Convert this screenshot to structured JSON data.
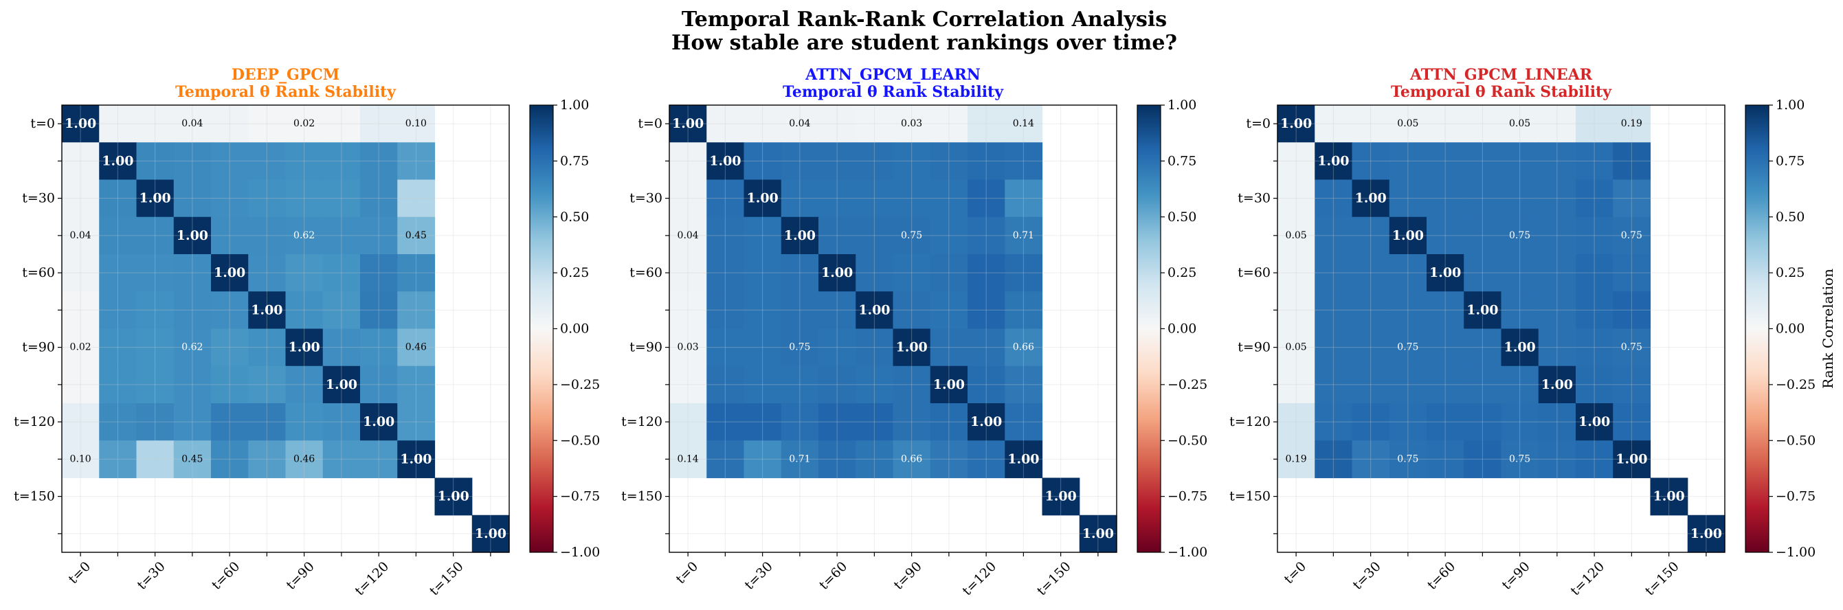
{
  "figure": {
    "title_line1": "Temporal Rank-Rank Correlation Analysis",
    "title_line2": "How stable are student rankings over time?"
  },
  "chart_data": [
    {
      "type": "heatmap",
      "title_line1": "DEEP_GPCM",
      "title_line2": "Temporal θ Rank Stability",
      "title_color": "#ff7f0e",
      "row_labels": [
        "t=0",
        "",
        "t=30",
        "",
        "t=60",
        "",
        "t=90",
        "",
        "t=120",
        "",
        "t=150",
        ""
      ],
      "col_labels": [
        "t=0",
        "",
        "t=30",
        "",
        "t=60",
        "",
        "t=90",
        "",
        "t=120",
        "",
        "t=150",
        ""
      ],
      "matrix": [
        [
          1.0,
          0.04,
          0.04,
          0.04,
          0.04,
          0.02,
          0.02,
          0.02,
          0.1,
          0.1,
          null,
          null
        ],
        [
          0.04,
          1.0,
          0.65,
          0.64,
          0.62,
          0.62,
          0.61,
          0.61,
          0.64,
          0.56,
          null,
          null
        ],
        [
          0.04,
          0.65,
          1.0,
          0.64,
          0.62,
          0.61,
          0.6,
          0.6,
          0.64,
          0.3,
          null,
          null
        ],
        [
          0.04,
          0.64,
          0.64,
          1.0,
          0.63,
          0.63,
          0.62,
          0.62,
          0.62,
          0.45,
          null,
          null
        ],
        [
          0.04,
          0.62,
          0.62,
          0.63,
          1.0,
          0.62,
          0.59,
          0.6,
          0.7,
          0.64,
          null,
          null
        ],
        [
          0.02,
          0.62,
          0.61,
          0.63,
          0.62,
          1.0,
          0.61,
          0.59,
          0.71,
          0.55,
          null,
          null
        ],
        [
          0.02,
          0.61,
          0.6,
          0.62,
          0.59,
          0.61,
          1.0,
          0.62,
          0.61,
          0.46,
          null,
          null
        ],
        [
          0.02,
          0.61,
          0.6,
          0.62,
          0.6,
          0.59,
          0.62,
          1.0,
          0.62,
          0.58,
          null,
          null
        ],
        [
          0.1,
          0.64,
          0.66,
          0.62,
          0.7,
          0.7,
          0.61,
          0.62,
          1.0,
          0.58,
          null,
          null
        ],
        [
          0.1,
          0.56,
          0.3,
          0.45,
          0.64,
          0.56,
          0.46,
          0.58,
          0.58,
          1.0,
          null,
          null
        ],
        [
          null,
          null,
          null,
          null,
          null,
          null,
          null,
          null,
          null,
          null,
          1.0,
          null
        ],
        [
          null,
          null,
          null,
          null,
          null,
          null,
          null,
          null,
          null,
          null,
          null,
          1.0
        ]
      ],
      "annotations": [
        {
          "row": 0,
          "col": 3,
          "text": "0.04"
        },
        {
          "row": 0,
          "col": 6,
          "text": "0.02"
        },
        {
          "row": 0,
          "col": 9,
          "text": "0.10"
        },
        {
          "row": 3,
          "col": 0,
          "text": "0.04"
        },
        {
          "row": 3,
          "col": 6,
          "text": "0.62"
        },
        {
          "row": 3,
          "col": 9,
          "text": "0.45"
        },
        {
          "row": 6,
          "col": 0,
          "text": "0.02"
        },
        {
          "row": 6,
          "col": 3,
          "text": "0.62"
        },
        {
          "row": 6,
          "col": 9,
          "text": "0.46"
        },
        {
          "row": 9,
          "col": 0,
          "text": "0.10"
        },
        {
          "row": 9,
          "col": 3,
          "text": "0.45"
        },
        {
          "row": 9,
          "col": 6,
          "text": "0.46"
        },
        {
          "row": 0,
          "col": 0,
          "text": "1.00"
        },
        {
          "row": 1,
          "col": 1,
          "text": "1.00"
        },
        {
          "row": 2,
          "col": 2,
          "text": "1.00"
        },
        {
          "row": 3,
          "col": 3,
          "text": "1.00"
        },
        {
          "row": 4,
          "col": 4,
          "text": "1.00"
        },
        {
          "row": 5,
          "col": 5,
          "text": "1.00"
        },
        {
          "row": 6,
          "col": 6,
          "text": "1.00"
        },
        {
          "row": 7,
          "col": 7,
          "text": "1.00"
        },
        {
          "row": 8,
          "col": 8,
          "text": "1.00"
        },
        {
          "row": 9,
          "col": 9,
          "text": "1.00"
        },
        {
          "row": 10,
          "col": 10,
          "text": "1.00"
        },
        {
          "row": 11,
          "col": 11,
          "text": "1.00"
        }
      ],
      "colorbar": {
        "min": -1.0,
        "max": 1.0,
        "ticks": [
          "1.00",
          "0.75",
          "0.50",
          "0.25",
          "0.00",
          "−0.25",
          "−0.50",
          "−0.75",
          "−1.00"
        ],
        "label": ""
      }
    },
    {
      "type": "heatmap",
      "title_line1": "ATTN_GPCM_LEARN",
      "title_line2": "Temporal θ Rank Stability",
      "title_color": "#1414ff",
      "row_labels": [
        "t=0",
        "",
        "t=30",
        "",
        "t=60",
        "",
        "t=90",
        "",
        "t=120",
        "",
        "t=150",
        ""
      ],
      "col_labels": [
        "t=0",
        "",
        "t=30",
        "",
        "t=60",
        "",
        "t=90",
        "",
        "t=120",
        "",
        "t=150",
        ""
      ],
      "matrix": [
        [
          1.0,
          0.04,
          0.04,
          0.04,
          0.04,
          0.03,
          0.03,
          0.03,
          0.14,
          0.14,
          null,
          null
        ],
        [
          0.04,
          1.0,
          0.76,
          0.75,
          0.75,
          0.75,
          0.74,
          0.75,
          0.77,
          0.76,
          null,
          null
        ],
        [
          0.04,
          0.76,
          1.0,
          0.74,
          0.74,
          0.74,
          0.74,
          0.74,
          0.8,
          0.62,
          null,
          null
        ],
        [
          0.04,
          0.75,
          0.74,
          1.0,
          0.75,
          0.75,
          0.75,
          0.74,
          0.76,
          0.71,
          null,
          null
        ],
        [
          0.04,
          0.75,
          0.74,
          0.75,
          1.0,
          0.75,
          0.74,
          0.75,
          0.8,
          0.77,
          null,
          null
        ],
        [
          0.03,
          0.75,
          0.74,
          0.75,
          0.75,
          1.0,
          0.75,
          0.74,
          0.8,
          0.73,
          null,
          null
        ],
        [
          0.03,
          0.74,
          0.74,
          0.75,
          0.74,
          0.75,
          1.0,
          0.75,
          0.75,
          0.66,
          null,
          null
        ],
        [
          0.03,
          0.75,
          0.74,
          0.74,
          0.75,
          0.74,
          0.75,
          1.0,
          0.77,
          0.72,
          null,
          null
        ],
        [
          0.14,
          0.8,
          0.8,
          0.76,
          0.8,
          0.8,
          0.75,
          0.77,
          1.0,
          0.76,
          null,
          null
        ],
        [
          0.14,
          0.75,
          0.62,
          0.71,
          0.76,
          0.73,
          0.66,
          0.72,
          0.76,
          1.0,
          null,
          null
        ],
        [
          null,
          null,
          null,
          null,
          null,
          null,
          null,
          null,
          null,
          null,
          1.0,
          null
        ],
        [
          null,
          null,
          null,
          null,
          null,
          null,
          null,
          null,
          null,
          null,
          null,
          1.0
        ]
      ],
      "annotations": [
        {
          "row": 0,
          "col": 3,
          "text": "0.04"
        },
        {
          "row": 0,
          "col": 6,
          "text": "0.03"
        },
        {
          "row": 0,
          "col": 9,
          "text": "0.14"
        },
        {
          "row": 3,
          "col": 0,
          "text": "0.04"
        },
        {
          "row": 3,
          "col": 6,
          "text": "0.75"
        },
        {
          "row": 3,
          "col": 9,
          "text": "0.71"
        },
        {
          "row": 6,
          "col": 0,
          "text": "0.03"
        },
        {
          "row": 6,
          "col": 3,
          "text": "0.75"
        },
        {
          "row": 6,
          "col": 9,
          "text": "0.66"
        },
        {
          "row": 9,
          "col": 0,
          "text": "0.14"
        },
        {
          "row": 9,
          "col": 3,
          "text": "0.71"
        },
        {
          "row": 9,
          "col": 6,
          "text": "0.66"
        },
        {
          "row": 0,
          "col": 0,
          "text": "1.00"
        },
        {
          "row": 1,
          "col": 1,
          "text": "1.00"
        },
        {
          "row": 2,
          "col": 2,
          "text": "1.00"
        },
        {
          "row": 3,
          "col": 3,
          "text": "1.00"
        },
        {
          "row": 4,
          "col": 4,
          "text": "1.00"
        },
        {
          "row": 5,
          "col": 5,
          "text": "1.00"
        },
        {
          "row": 6,
          "col": 6,
          "text": "1.00"
        },
        {
          "row": 7,
          "col": 7,
          "text": "1.00"
        },
        {
          "row": 8,
          "col": 8,
          "text": "1.00"
        },
        {
          "row": 9,
          "col": 9,
          "text": "1.00"
        },
        {
          "row": 10,
          "col": 10,
          "text": "1.00"
        },
        {
          "row": 11,
          "col": 11,
          "text": "1.00"
        }
      ],
      "colorbar": {
        "min": -1.0,
        "max": 1.0,
        "ticks": [
          "1.00",
          "0.75",
          "0.50",
          "0.25",
          "0.00",
          "−0.25",
          "−0.50",
          "−0.75",
          "−1.00"
        ],
        "label": ""
      }
    },
    {
      "type": "heatmap",
      "title_line1": "ATTN_GPCM_LINEAR",
      "title_line2": "Temporal θ Rank Stability",
      "title_color": "#d62728",
      "row_labels": [
        "t=0",
        "",
        "t=30",
        "",
        "t=60",
        "",
        "t=90",
        "",
        "t=120",
        "",
        "t=150",
        ""
      ],
      "col_labels": [
        "t=0",
        "",
        "t=30",
        "",
        "t=60",
        "",
        "t=90",
        "",
        "t=120",
        "",
        "t=150",
        ""
      ],
      "matrix": [
        [
          1.0,
          0.05,
          0.05,
          0.05,
          0.05,
          0.05,
          0.05,
          0.05,
          0.19,
          0.19,
          null,
          null
        ],
        [
          0.05,
          1.0,
          0.76,
          0.75,
          0.75,
          0.75,
          0.75,
          0.75,
          0.76,
          0.82,
          null,
          null
        ],
        [
          0.05,
          0.76,
          1.0,
          0.75,
          0.75,
          0.75,
          0.75,
          0.75,
          0.78,
          0.72,
          null,
          null
        ],
        [
          0.05,
          0.75,
          0.75,
          1.0,
          0.75,
          0.75,
          0.75,
          0.75,
          0.76,
          0.75,
          null,
          null
        ],
        [
          0.05,
          0.75,
          0.75,
          0.75,
          1.0,
          0.75,
          0.75,
          0.75,
          0.78,
          0.76,
          null,
          null
        ],
        [
          0.05,
          0.75,
          0.75,
          0.75,
          0.75,
          1.0,
          0.75,
          0.75,
          0.78,
          0.8,
          null,
          null
        ],
        [
          0.05,
          0.75,
          0.75,
          0.75,
          0.75,
          0.75,
          1.0,
          0.75,
          0.76,
          0.75,
          null,
          null
        ],
        [
          0.05,
          0.75,
          0.75,
          0.75,
          0.75,
          0.75,
          0.75,
          1.0,
          0.77,
          0.76,
          null,
          null
        ],
        [
          0.19,
          0.76,
          0.78,
          0.76,
          0.78,
          0.78,
          0.76,
          0.77,
          1.0,
          0.78,
          null,
          null
        ],
        [
          0.19,
          0.82,
          0.72,
          0.75,
          0.76,
          0.8,
          0.75,
          0.76,
          0.78,
          1.0,
          null,
          null
        ],
        [
          null,
          null,
          null,
          null,
          null,
          null,
          null,
          null,
          null,
          null,
          1.0,
          null
        ],
        [
          null,
          null,
          null,
          null,
          null,
          null,
          null,
          null,
          null,
          null,
          null,
          1.0
        ]
      ],
      "annotations": [
        {
          "row": 0,
          "col": 3,
          "text": "0.05"
        },
        {
          "row": 0,
          "col": 6,
          "text": "0.05"
        },
        {
          "row": 0,
          "col": 9,
          "text": "0.19"
        },
        {
          "row": 3,
          "col": 0,
          "text": "0.05"
        },
        {
          "row": 3,
          "col": 6,
          "text": "0.75"
        },
        {
          "row": 3,
          "col": 9,
          "text": "0.75"
        },
        {
          "row": 6,
          "col": 0,
          "text": "0.05"
        },
        {
          "row": 6,
          "col": 3,
          "text": "0.75"
        },
        {
          "row": 6,
          "col": 9,
          "text": "0.75"
        },
        {
          "row": 9,
          "col": 0,
          "text": "0.19"
        },
        {
          "row": 9,
          "col": 3,
          "text": "0.75"
        },
        {
          "row": 9,
          "col": 6,
          "text": "0.75"
        },
        {
          "row": 0,
          "col": 0,
          "text": "1.00"
        },
        {
          "row": 1,
          "col": 1,
          "text": "1.00"
        },
        {
          "row": 2,
          "col": 2,
          "text": "1.00"
        },
        {
          "row": 3,
          "col": 3,
          "text": "1.00"
        },
        {
          "row": 4,
          "col": 4,
          "text": "1.00"
        },
        {
          "row": 5,
          "col": 5,
          "text": "1.00"
        },
        {
          "row": 6,
          "col": 6,
          "text": "1.00"
        },
        {
          "row": 7,
          "col": 7,
          "text": "1.00"
        },
        {
          "row": 8,
          "col": 8,
          "text": "1.00"
        },
        {
          "row": 9,
          "col": 9,
          "text": "1.00"
        },
        {
          "row": 10,
          "col": 10,
          "text": "1.00"
        },
        {
          "row": 11,
          "col": 11,
          "text": "1.00"
        }
      ],
      "colorbar": {
        "min": -1.0,
        "max": 1.0,
        "ticks": [
          "1.00",
          "0.75",
          "0.50",
          "0.25",
          "0.00",
          "−0.25",
          "−0.50",
          "−0.75",
          "−1.00"
        ],
        "label": "Rank Correlation"
      }
    }
  ]
}
